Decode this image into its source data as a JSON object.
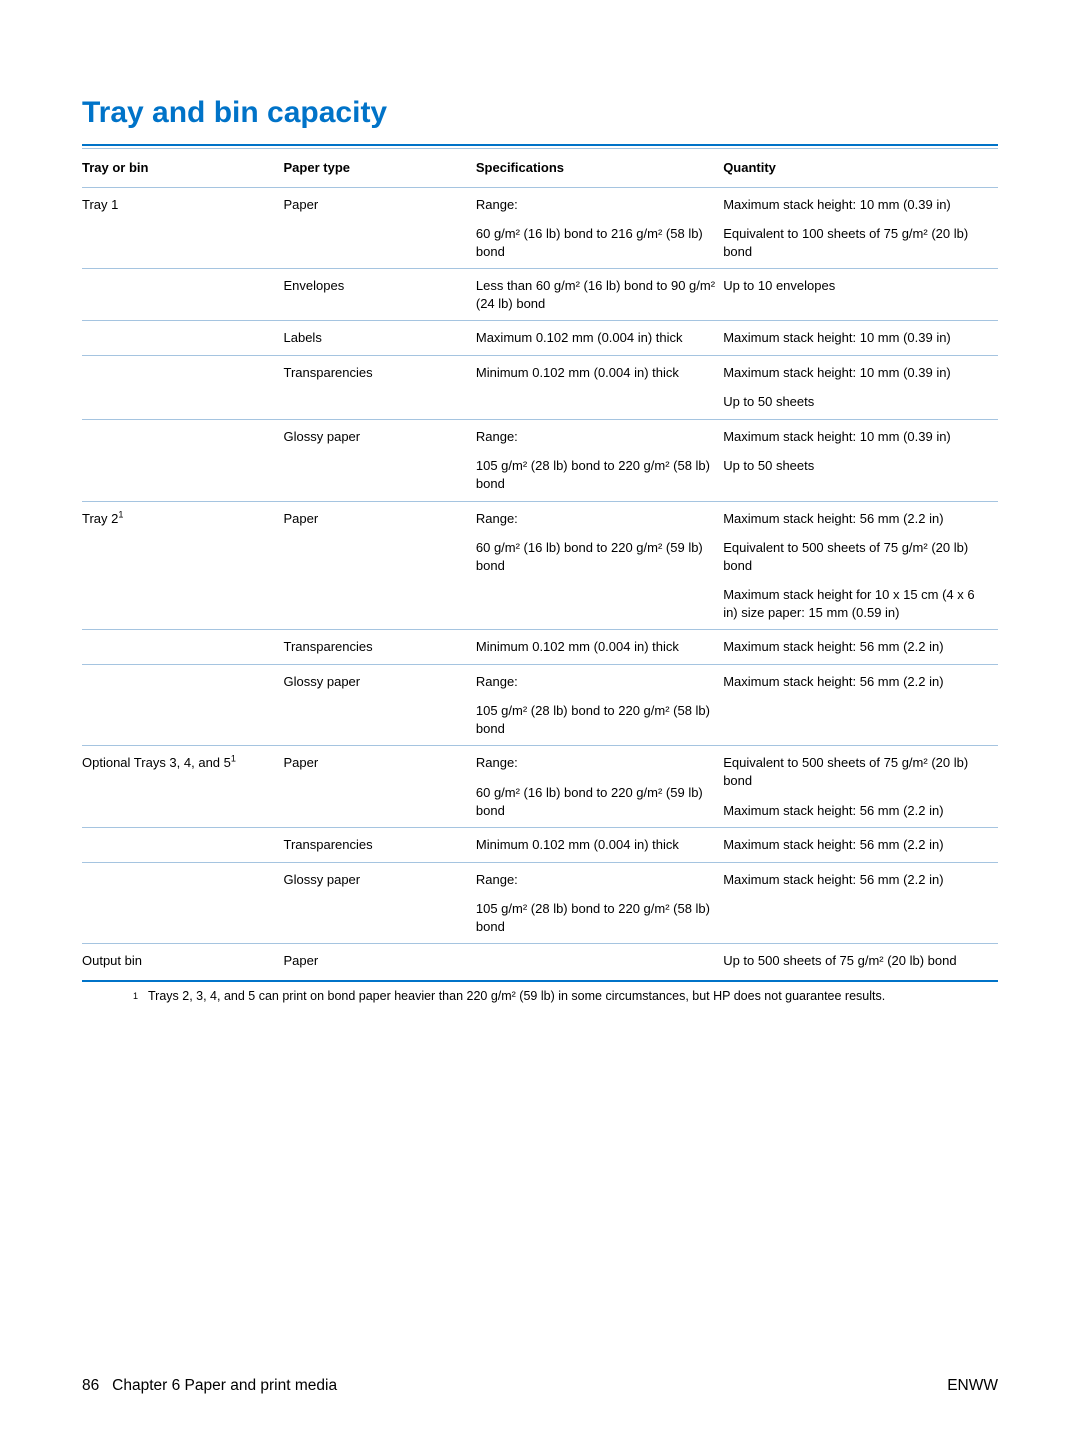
{
  "title": "Tray and bin capacity",
  "colors": {
    "accent": "#0073c8",
    "ruleLight": "#a5c4e0",
    "text": "#000000",
    "background": "#ffffff"
  },
  "tableHeaders": {
    "tray": "Tray or bin",
    "type": "Paper type",
    "spec": "Specifications",
    "qty": "Quantity"
  },
  "rows": {
    "r1": {
      "tray": "Tray 1",
      "type": "Paper",
      "spec_l1": "Range:",
      "spec_l2": "60 g/m² (16 lb) bond to 216 g/m² (58 lb) bond",
      "qty_l1": "Maximum stack height: 10 mm (0.39 in)",
      "qty_l2": "Equivalent to 100 sheets of 75 g/m² (20 lb) bond"
    },
    "r2": {
      "type": "Envelopes",
      "spec": "Less than 60 g/m² (16 lb) bond to 90 g/m² (24 lb) bond",
      "qty": "Up to 10 envelopes"
    },
    "r3": {
      "type": "Labels",
      "spec": "Maximum 0.102 mm (0.004 in) thick",
      "qty": "Maximum stack height: 10 mm (0.39 in)"
    },
    "r4": {
      "type": "Transparencies",
      "spec": "Minimum 0.102 mm (0.004 in) thick",
      "qty_l1": "Maximum stack height: 10 mm (0.39 in)",
      "qty_l2": "Up to 50 sheets"
    },
    "r5": {
      "type": "Glossy paper",
      "spec_l1": "Range:",
      "spec_l2": "105 g/m² (28 lb) bond to 220 g/m² (58 lb) bond",
      "qty_l1": "Maximum stack height: 10 mm (0.39 in)",
      "qty_l2": "Up to 50 sheets"
    },
    "r6": {
      "tray_pre": "Tray 2",
      "tray_sup": "1",
      "type": "Paper",
      "spec_l1": "Range:",
      "spec_l2": "60 g/m² (16 lb) bond to 220 g/m² (59 lb) bond",
      "qty_l1": "Maximum stack height: 56 mm (2.2 in)",
      "qty_l2": "Equivalent to 500 sheets of 75 g/m² (20 lb) bond",
      "qty_l3": "Maximum stack height for 10 x 15 cm (4 x 6 in) size paper: 15 mm (0.59 in)"
    },
    "r7": {
      "type": "Transparencies",
      "spec": "Minimum 0.102 mm (0.004 in) thick",
      "qty": "Maximum stack height: 56 mm (2.2 in)"
    },
    "r8": {
      "type": "Glossy paper",
      "spec_l1": "Range:",
      "spec_l2": "105 g/m² (28 lb) bond to 220 g/m² (58 lb) bond",
      "qty": "Maximum stack height: 56 mm (2.2 in)"
    },
    "r9": {
      "tray_pre": "Optional Trays 3, 4, and 5",
      "tray_sup": "1",
      "type": "Paper",
      "spec_l1": "Range:",
      "spec_l2": "60 g/m² (16 lb) bond to 220 g/m² (59 lb) bond",
      "qty_l1": "Equivalent to 500 sheets of 75 g/m² (20 lb) bond",
      "qty_l2": "Maximum stack height: 56 mm (2.2 in)"
    },
    "r10": {
      "type": "Transparencies",
      "spec": "Minimum 0.102 mm (0.004 in) thick",
      "qty": "Maximum stack height: 56 mm (2.2 in)"
    },
    "r11": {
      "type": "Glossy paper",
      "spec_l1": "Range:",
      "spec_l2": "105 g/m² (28 lb) bond to 220 g/m² (58 lb) bond",
      "qty": "Maximum stack height: 56 mm (2.2 in)"
    },
    "r12": {
      "tray": "Output bin",
      "type": "Paper",
      "qty": "Up to 500 sheets of 75 g/m² (20 lb) bond"
    }
  },
  "footnote": {
    "marker": "1",
    "text": "Trays 2, 3, 4, and 5 can print on bond paper heavier than 220 g/m² (59 lb) in some circumstances, but HP does not guarantee results."
  },
  "footer": {
    "pageNum": "86",
    "chapter": "Chapter 6   Paper and print media",
    "right": "ENWW"
  }
}
